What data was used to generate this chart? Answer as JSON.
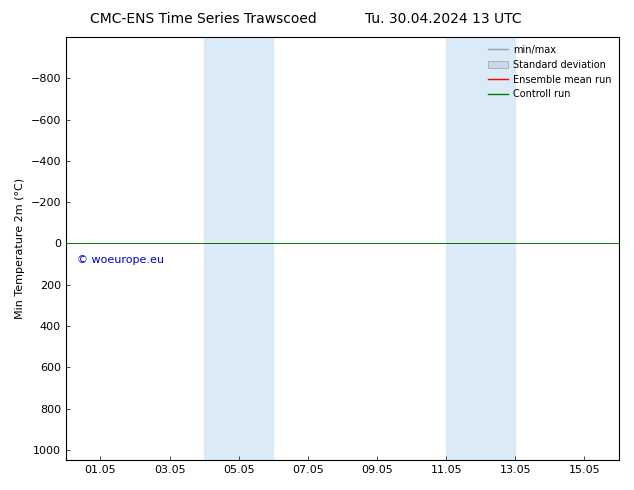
{
  "title_left": "CMC-ENS Time Series Trawscoed",
  "title_right": "Tu. 30.04.2024 13 UTC",
  "ylabel": "Min Temperature 2m (°C)",
  "xtick_labels": [
    "01.05",
    "03.05",
    "05.05",
    "07.05",
    "09.05",
    "11.05",
    "13.05",
    "15.05"
  ],
  "xtick_positions": [
    1,
    3,
    5,
    7,
    9,
    11,
    13,
    15
  ],
  "ylim_top": -1000,
  "ylim_bottom": 1050,
  "yticks": [
    -800,
    -600,
    -400,
    -200,
    0,
    200,
    400,
    600,
    800,
    1000
  ],
  "xlim": [
    0,
    16
  ],
  "background_color": "#ffffff",
  "plot_bg_color": "#ffffff",
  "shaded_bands": [
    {
      "x_start": 4,
      "x_end": 6,
      "color": "#daeaf7"
    },
    {
      "x_start": 11,
      "x_end": 13,
      "color": "#daeaf7"
    }
  ],
  "control_run_color": "#008000",
  "ensemble_mean_color": "#ff0000",
  "legend_labels": [
    "min/max",
    "Standard deviation",
    "Ensemble mean run",
    "Controll run"
  ],
  "legend_colors_line": [
    "#a0a0a0",
    "#c8d8e8",
    "#ff0000",
    "#008000"
  ],
  "watermark": "© woeurope.eu",
  "watermark_color": "#0000cc",
  "title_fontsize": 10,
  "axis_label_fontsize": 8,
  "tick_fontsize": 8,
  "legend_fontsize": 7
}
